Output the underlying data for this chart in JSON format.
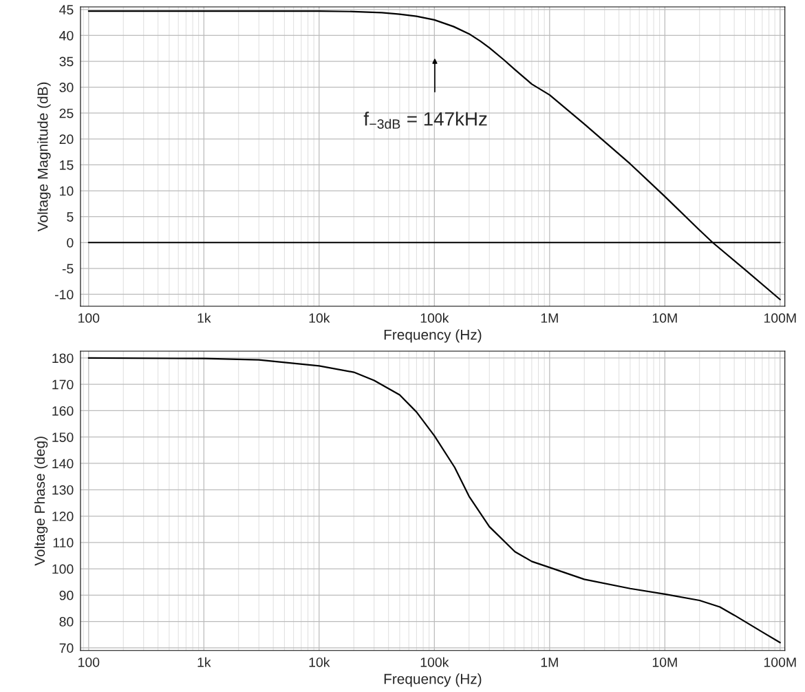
{
  "chart_data": [
    {
      "type": "line",
      "xlabel": "Frequency (Hz)",
      "ylabel": "Voltage Magnitude (dB)",
      "log": "x",
      "grid": true,
      "legend": false,
      "marker": "none",
      "line_style": "solid",
      "xlim": [
        85,
        110000000
      ],
      "ylim": [
        -12.3,
        45.5
      ],
      "xticks": [
        100,
        {
          "value": 1000,
          "label": "1k"
        },
        {
          "value": 10000,
          "label": "10k"
        },
        {
          "value": 100000,
          "label": "100k"
        },
        {
          "value": 1000000,
          "label": "1M"
        },
        {
          "value": 10000000,
          "label": "10M"
        },
        {
          "value": 100000000,
          "label": "100M"
        }
      ],
      "yticks": [
        -10,
        -5,
        0,
        5,
        10,
        15,
        20,
        25,
        30,
        35,
        40,
        45
      ],
      "series": [
        {
          "color": "#000000",
          "x": [
            100,
            1000,
            10000,
            20000,
            35000,
            50000,
            70000,
            100000,
            147000,
            200000,
            250000,
            300000,
            400000,
            500000,
            700000,
            1000000,
            2000000,
            5000000,
            10000000,
            20000000,
            26000000,
            50000000,
            100000000
          ],
          "values": [
            44.7,
            44.7,
            44.7,
            44.6,
            44.4,
            44.1,
            43.7,
            43.0,
            41.7,
            40.3,
            38.9,
            37.6,
            35.3,
            33.4,
            30.6,
            28.5,
            22.9,
            15.2,
            8.9,
            2.4,
            0,
            -5.3,
            -11
          ]
        },
        {
          "color": "#000000",
          "x": [
            100,
            100000000
          ],
          "values": [
            0,
            0
          ]
        }
      ],
      "annotations": [
        "f$_{−3dB}$ = 147kHz"
      ]
    },
    {
      "type": "line",
      "xlabel": "Frequency (Hz)",
      "ylabel": "Voltage Phase (deg)",
      "log": "x",
      "grid": true,
      "legend": false,
      "marker": "none",
      "line_style": "solid",
      "xlim": [
        85,
        110000000
      ],
      "ylim": [
        69,
        182.6
      ],
      "xticks": [
        100,
        {
          "value": 1000,
          "label": "1k"
        },
        {
          "value": 10000,
          "label": "10k"
        },
        {
          "value": 100000,
          "label": "100k"
        },
        {
          "value": 1000000,
          "label": "1M"
        },
        {
          "value": 10000000,
          "label": "10M"
        },
        {
          "value": 100000000,
          "label": "100M"
        }
      ],
      "yticks": [
        70,
        80,
        90,
        100,
        110,
        120,
        130,
        140,
        150,
        160,
        170,
        180
      ],
      "series": [
        {
          "color": "#000000",
          "x": [
            100,
            1000,
            3000,
            10000,
            20000,
            30000,
            50000,
            70000,
            100000,
            150000,
            200000,
            300000,
            500000,
            700000,
            1000000,
            2000000,
            5000000,
            10000000,
            20000000,
            30000000,
            40000000,
            70000000,
            100000000
          ],
          "values": [
            180,
            179.8,
            179.3,
            177,
            174.6,
            171.5,
            166,
            159.5,
            150.5,
            138.5,
            127.5,
            116,
            106.5,
            102.8,
            100.5,
            96,
            92.5,
            90.4,
            88,
            85.5,
            82.4,
            76,
            72
          ]
        }
      ]
    }
  ]
}
